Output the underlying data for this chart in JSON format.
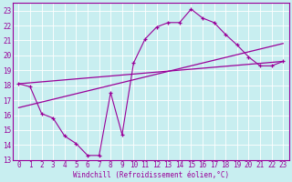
{
  "xlabel": "Windchill (Refroidissement éolien,°C)",
  "bg_color": "#c8eef0",
  "grid_color": "#ffffff",
  "line_color": "#990099",
  "xlim": [
    -0.5,
    23.5
  ],
  "ylim": [
    13,
    23.5
  ],
  "xticks": [
    0,
    1,
    2,
    3,
    4,
    5,
    6,
    7,
    8,
    9,
    10,
    11,
    12,
    13,
    14,
    15,
    16,
    17,
    18,
    19,
    20,
    21,
    22,
    23
  ],
  "yticks": [
    13,
    14,
    15,
    16,
    17,
    18,
    19,
    20,
    21,
    22,
    23
  ],
  "line1_x": [
    0,
    1,
    2,
    3,
    4,
    5,
    6,
    7,
    8,
    9,
    10,
    11,
    12,
    13,
    14,
    15,
    16,
    17,
    18,
    19,
    20,
    21,
    22,
    23
  ],
  "line1_y": [
    18.1,
    17.9,
    16.1,
    15.8,
    14.6,
    14.1,
    13.3,
    13.3,
    17.5,
    14.7,
    19.5,
    21.1,
    21.9,
    22.2,
    22.2,
    23.1,
    22.5,
    22.2,
    21.4,
    20.7,
    19.9,
    19.3,
    19.3,
    19.6
  ],
  "line2_x": [
    0,
    23
  ],
  "line2_y": [
    18.1,
    19.6
  ],
  "line3_x": [
    0,
    23
  ],
  "line3_y": [
    16.5,
    20.8
  ],
  "tick_fontsize": 5.5,
  "xlabel_fontsize": 5.5
}
